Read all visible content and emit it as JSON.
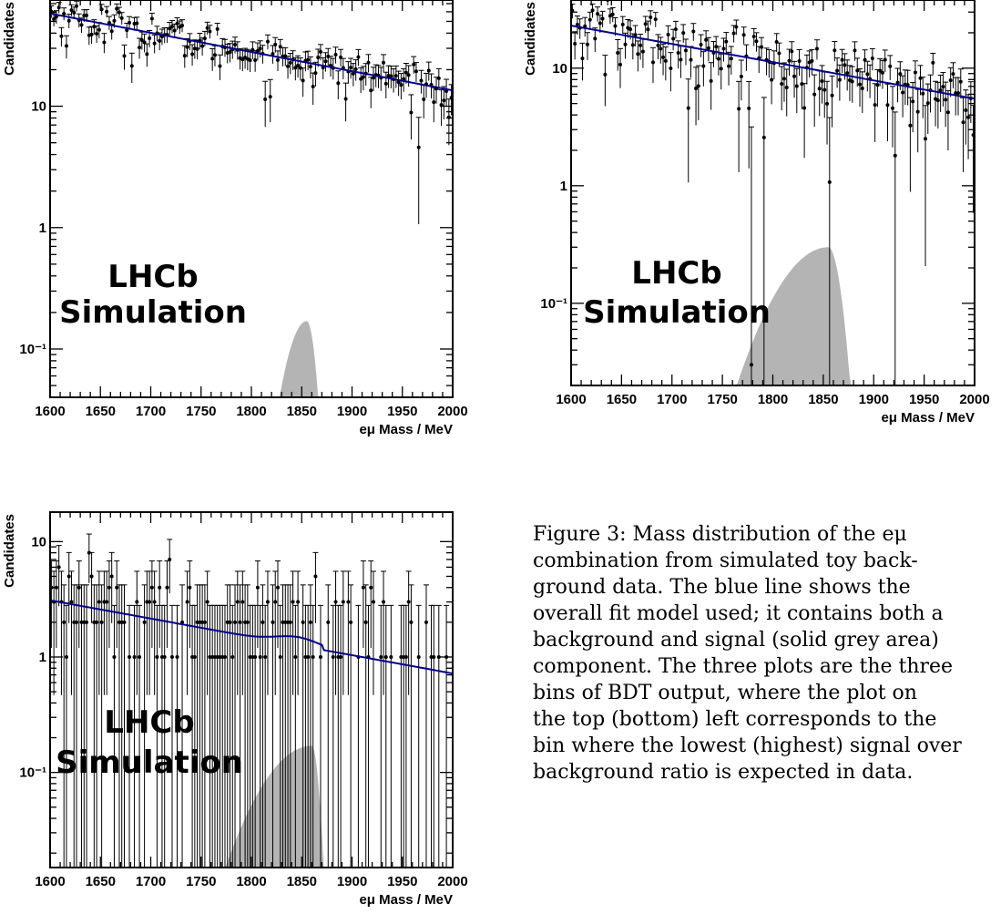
{
  "chart_data": [
    {
      "type": "scatter",
      "panel": "top-left",
      "xlabel": "eμ Mass / MeV",
      "ylabel": "Candidates",
      "xlim": [
        1600,
        2000
      ],
      "ylim": [
        0.04,
        75
      ],
      "yscale": "log",
      "xticks": [
        "1600",
        "1650",
        "1700",
        "1750",
        "1800",
        "1850",
        "1900",
        "1950",
        "2000"
      ],
      "yticks": [
        {
          "value": 0.1,
          "label": "10⁻¹"
        },
        {
          "value": 1,
          "label": "1"
        },
        {
          "value": 10,
          "label": "10"
        }
      ],
      "watermark": [
        "LHCb",
        "Simulation"
      ],
      "background_fit": {
        "y_at_1600": 58,
        "y_at_2000": 13.5
      },
      "signal": {
        "peak_x": 1855,
        "peak_y": 0.17,
        "start_x": 1800,
        "end_x": 1880
      },
      "fit_kink": {
        "x": 1855,
        "step": 0
      },
      "noise": {
        "rel_scatter": 0.2,
        "err_factor": 1.0,
        "discrete": false
      },
      "series": [
        {
          "values_note": "",
          "data": []
        }
      ]
    },
    {
      "type": "scatter",
      "panel": "top-right",
      "xlabel": "eμ Mass / MeV",
      "ylabel": "Candidates",
      "xlim": [
        1600,
        2000
      ],
      "ylim": [
        0.02,
        38
      ],
      "yscale": "log",
      "xticks": [
        "1600",
        "1650",
        "1700",
        "1750",
        "1800",
        "1850",
        "1900",
        "1950",
        "2000"
      ],
      "yticks": [
        {
          "value": 0.1,
          "label": "10⁻¹"
        },
        {
          "value": 1,
          "label": "1"
        },
        {
          "value": 10,
          "label": "10"
        }
      ],
      "watermark": [
        "LHCb",
        "Simulation"
      ],
      "background_fit": {
        "y_at_1600": 23,
        "y_at_2000": 5.5
      },
      "signal": {
        "peak_x": 1855,
        "peak_y": 0.3,
        "start_x": 1720,
        "end_x": 1890
      },
      "fit_kink": {
        "x": 1855,
        "step": 0
      },
      "noise": {
        "rel_scatter": 0.35,
        "err_factor": 1.0,
        "discrete": false
      },
      "series": [
        {
          "values_note": "",
          "data": []
        }
      ]
    },
    {
      "type": "scatter",
      "panel": "bottom-left",
      "xlabel": "eμ Mass / MeV",
      "ylabel": "Candidates",
      "xlim": [
        1600,
        2000
      ],
      "ylim": [
        0.015,
        18
      ],
      "yscale": "log",
      "xticks": [
        "1600",
        "1650",
        "1700",
        "1750",
        "1800",
        "1850",
        "1900",
        "1950",
        "2000"
      ],
      "yticks": [
        {
          "value": 0.1,
          "label": "10⁻¹"
        },
        {
          "value": 1,
          "label": "1"
        },
        {
          "value": 10,
          "label": "10"
        }
      ],
      "watermark": [
        "LHCb",
        "Simulation"
      ],
      "background_fit": {
        "y_at_1600": 3.1,
        "y_at_2000": 0.72
      },
      "signal": {
        "peak_x": 1860,
        "peak_y": 0.17,
        "start_x": 1725,
        "end_x": 1880
      },
      "fit_kink": {
        "x": 1862,
        "step": 0.18
      },
      "noise": {
        "rel_scatter": 0,
        "err_factor": 1.0,
        "discrete": true
      },
      "series": [
        {
          "values_note": "",
          "data": []
        }
      ]
    }
  ],
  "caption": {
    "lines": [
      "Figure 3:  Mass distribution of the eμ",
      "combination  from  simulated  toy  back-",
      "ground data.   The blue line shows the",
      "overall fit model used; it contains both a",
      "background and signal (solid grey area)",
      "component. The three plots are the three",
      "bins of BDT output, where the plot on",
      "the top (bottom) left corresponds to the",
      "bin where the lowest (highest) signal over",
      "background ratio is expected in data."
    ]
  },
  "colors": {
    "fit_line": "#00008b",
    "signal_fill": "#b4b4b4",
    "data_points": "#000000"
  }
}
